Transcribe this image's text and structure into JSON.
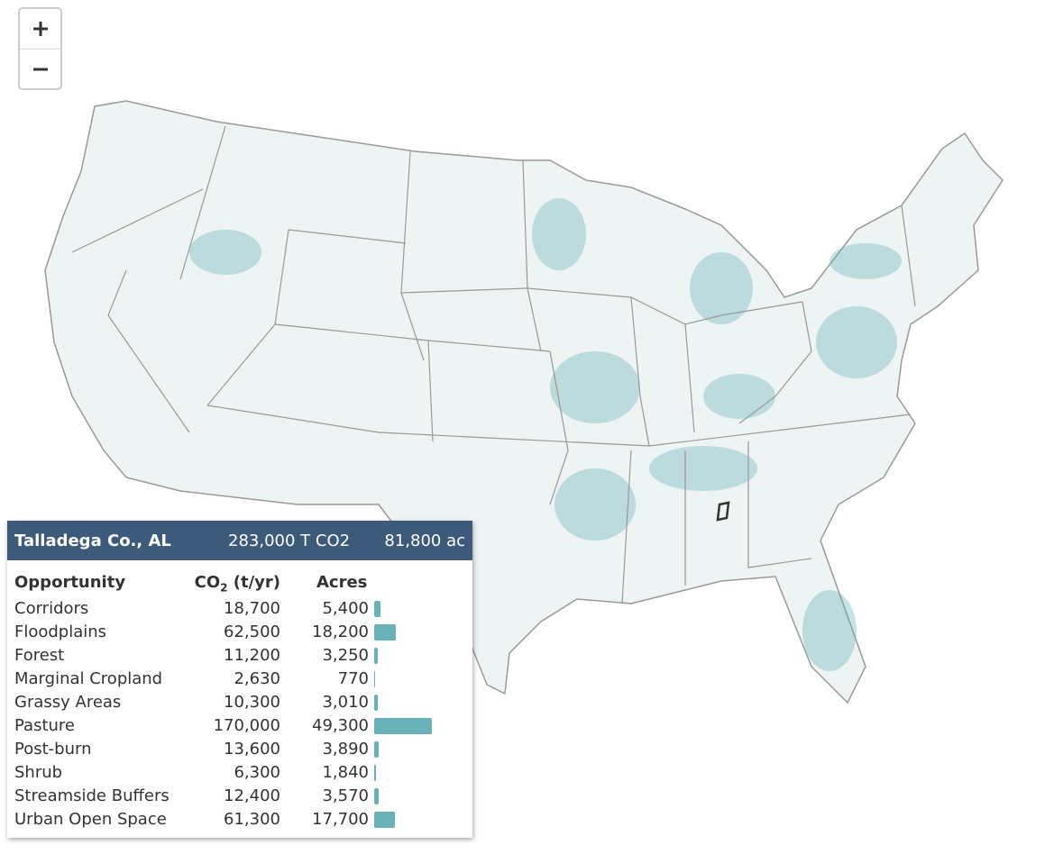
{
  "tooltip": {
    "header": {
      "county": "Talladega Co., AL",
      "co2_total": "283,000 T CO2",
      "acres_total": "81,800 ac"
    },
    "columns": {
      "opportunity": "Opportunity",
      "co2_main": "CO",
      "co2_sub": "2",
      "co2_rest": " (t/yr)",
      "acres": "Acres"
    },
    "rows": [
      {
        "name": "Corridors",
        "co2": "18,700",
        "acres": {
          "value": 5400,
          "label": "5,400"
        }
      },
      {
        "name": "Floodplains",
        "co2": "62,500",
        "acres": {
          "value": 18200,
          "label": "18,200"
        }
      },
      {
        "name": "Forest",
        "co2": "11,200",
        "acres": {
          "value": 3250,
          "label": "3,250"
        }
      },
      {
        "name": "Marginal Cropland",
        "co2": "2,630",
        "acres": {
          "value": 770,
          "label": "770"
        }
      },
      {
        "name": "Grassy Areas",
        "co2": "10,300",
        "acres": {
          "value": 3010,
          "label": "3,010"
        }
      },
      {
        "name": "Pasture",
        "co2": "170,000",
        "acres": {
          "value": 49300,
          "label": "49,300"
        }
      },
      {
        "name": "Post-burn",
        "co2": "13,600",
        "acres": {
          "value": 3890,
          "label": "3,890"
        }
      },
      {
        "name": "Shrub",
        "co2": "6,300",
        "acres": {
          "value": 1840,
          "label": "1,840"
        }
      },
      {
        "name": "Streamside Buffers",
        "co2": "12,400",
        "acres": {
          "value": 3570,
          "label": "3,570"
        }
      },
      {
        "name": "Urban Open Space",
        "co2": "61,300",
        "acres": {
          "value": 17700,
          "label": "17,700"
        }
      }
    ]
  }
}
